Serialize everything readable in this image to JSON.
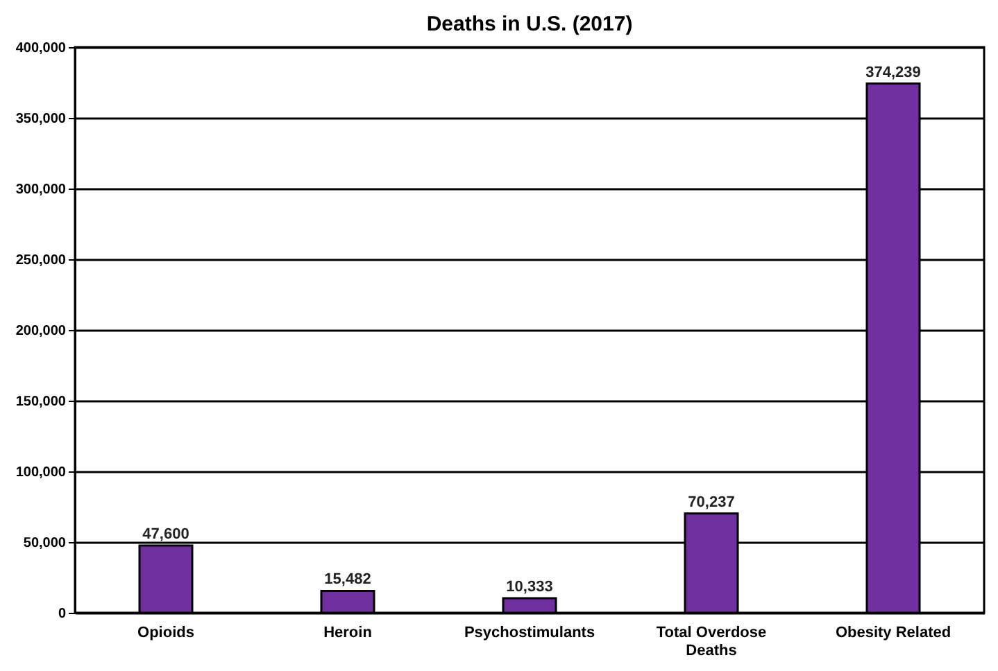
{
  "chart_data": {
    "type": "bar",
    "title": "Deaths in U.S. (2017)",
    "categories": [
      "Opioids",
      "Heroin",
      "Psychostimulants",
      "Total Overdose Deaths",
      "Obesity Related"
    ],
    "values": [
      47600,
      15482,
      10333,
      70237,
      374239
    ],
    "value_labels": [
      "47,600",
      "15,482",
      "10,333",
      "70,237",
      "374,239"
    ],
    "color": "#7030a0",
    "ylim": [
      0,
      400000
    ],
    "yticks": [
      0,
      {
        "value": 50000,
        "label": "50,000"
      },
      {
        "value": 100000,
        "label": "100,000"
      },
      {
        "value": 150000,
        "label": "150,000"
      },
      {
        "value": 200000,
        "label": "200,000"
      },
      {
        "value": 250000,
        "label": "250,000"
      },
      {
        "value": 300000,
        "label": "300,000"
      },
      {
        "value": 350000,
        "label": "350,000"
      },
      {
        "value": 400000,
        "label": "400,000"
      }
    ],
    "grid": "y"
  }
}
